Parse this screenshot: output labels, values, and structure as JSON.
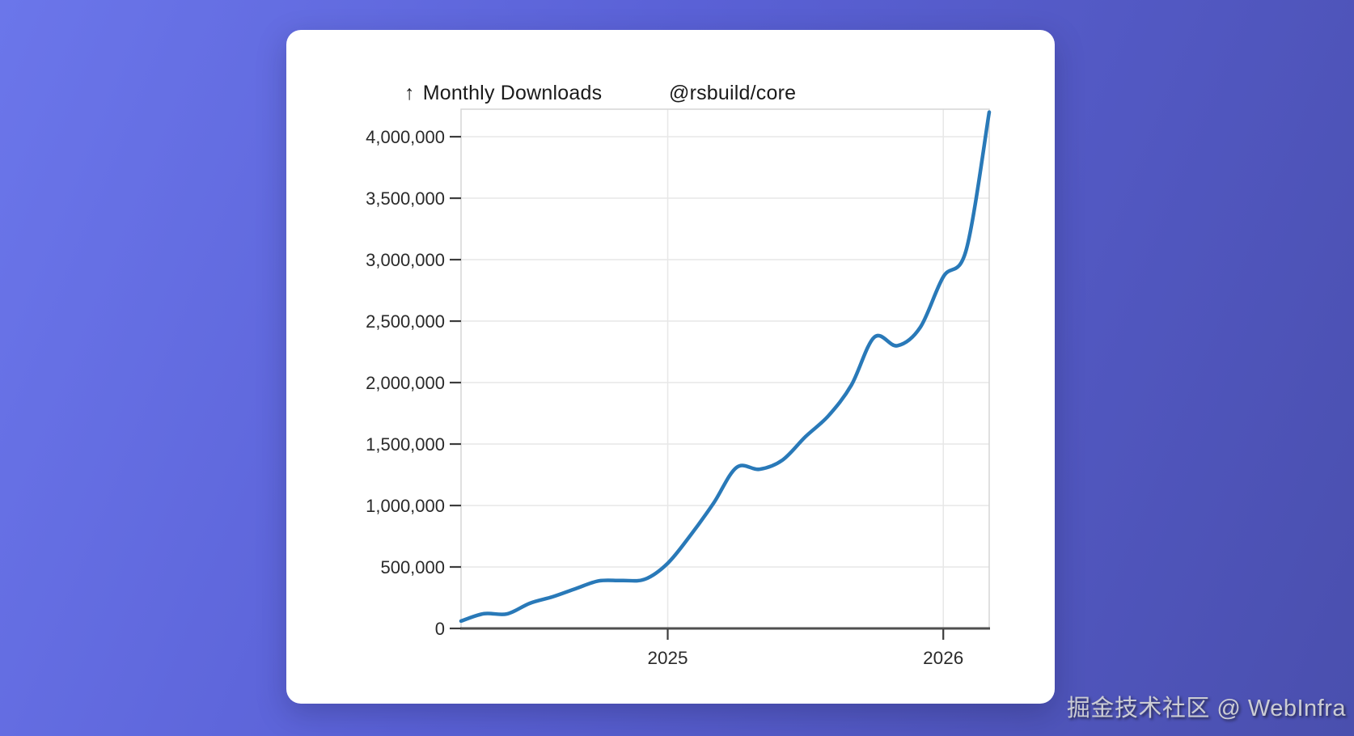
{
  "page": {
    "background_gradient": [
      "#6b76ea",
      "#5a61d6",
      "#4a4fae"
    ],
    "card_color": "#ffffff"
  },
  "header": {
    "arrow_icon": "↑",
    "title": "Monthly Downloads",
    "package_name": "@rsbuild/core"
  },
  "watermark": {
    "text": "掘金技术社区 @ WebInfra"
  },
  "chart_data": {
    "type": "line",
    "title": "Monthly Downloads",
    "series_name": "@rsbuild/core",
    "x": [
      "Apr 2024",
      "May 2024",
      "Jun 2024",
      "Jul 2024",
      "Aug 2024",
      "Sep 2024",
      "Oct 2024",
      "Nov 2024",
      "Dec 2024",
      "Jan 2025",
      "Feb 2025",
      "Mar 2025",
      "Apr 2025",
      "May 2025",
      "Jun 2025",
      "Jul 2025",
      "Aug 2025",
      "Sep 2025",
      "Oct 2025",
      "Nov 2025",
      "Dec 2025",
      "Jan 2026",
      "Feb 2026",
      "Mar 2026"
    ],
    "values": [
      60000,
      120000,
      118000,
      205000,
      258000,
      324000,
      387000,
      390000,
      400000,
      530000,
      760000,
      1020000,
      1310000,
      1295000,
      1370000,
      1560000,
      1730000,
      1980000,
      2370000,
      2300000,
      2450000,
      2860000,
      3080000,
      4200000
    ],
    "ylim": [
      0,
      4224000
    ],
    "yticks": [
      0,
      500000,
      1000000,
      1500000,
      2000000,
      2500000,
      3000000,
      3500000,
      4000000
    ],
    "ytick_labels": [
      "0",
      "500,000",
      "1,000,000",
      "1,500,000",
      "2,000,000",
      "2,500,000",
      "3,000,000",
      "3,500,000",
      "4,000,000"
    ],
    "xticks": [
      {
        "label": "2025",
        "month_index": 9
      },
      {
        "label": "2026",
        "month_index": 21
      }
    ],
    "grid": true,
    "legend": "none",
    "colors": {
      "line": "#2979b8",
      "grid": "#e7e7e7",
      "plot_border": "#d6d6d6",
      "axis": "#4f4f4f",
      "tick": "#3c3c3c",
      "tick_label": "#2a2a2a"
    }
  }
}
